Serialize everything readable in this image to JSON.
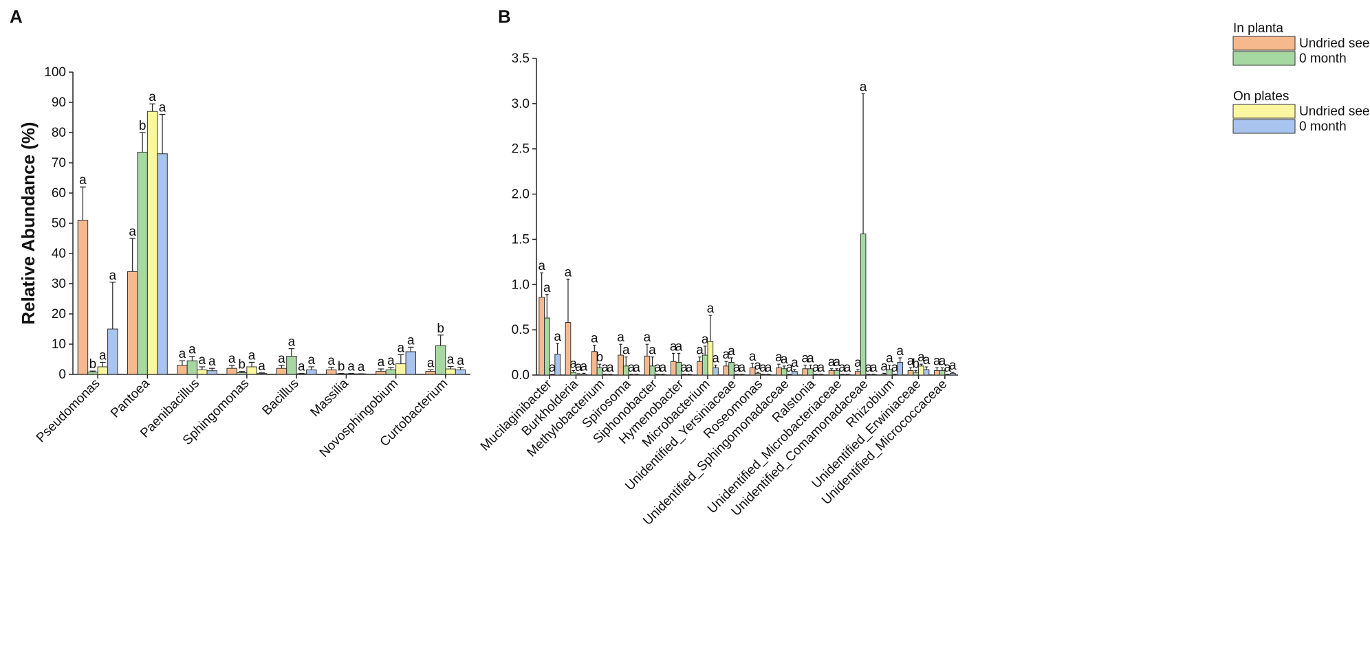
{
  "chart_data": [
    {
      "panel": "A",
      "type": "bar",
      "title": "",
      "xlabel": "",
      "ylabel": "Relative Abundance (%)",
      "ylim": [
        0,
        100
      ],
      "yticks": [
        "0",
        "10",
        "20",
        "30",
        "40",
        "50",
        "60",
        "70",
        "80",
        "90",
        "100"
      ],
      "categories": [
        "Pseudomonas",
        "Pantoea",
        "Paenibacillus",
        "Sphingomonas",
        "Bacillus",
        "Massilia",
        "Novosphingobium",
        "Curtobacterium"
      ],
      "series": [
        {
          "name": "In planta Undried seed",
          "color": "#f6b98e",
          "values": [
            51,
            34,
            3,
            2,
            2,
            1.5,
            1,
            1
          ],
          "errors": [
            11,
            11,
            1.5,
            1,
            1,
            0.8,
            0.8,
            0.5
          ],
          "letters": [
            "a",
            "a",
            "a",
            "a",
            "a",
            "a",
            "a",
            "a"
          ]
        },
        {
          "name": "In planta 0 month",
          "color": "#a6d8a2",
          "values": [
            0.8,
            73.5,
            4.5,
            0.6,
            6,
            0.2,
            1.5,
            9.5
          ],
          "errors": [
            0.3,
            6.5,
            1.5,
            0.4,
            2.5,
            0.1,
            0.8,
            3.5
          ],
          "letters": [
            "b",
            "b",
            "a",
            "b",
            "a",
            "b",
            "a",
            "b"
          ]
        },
        {
          "name": "On plates Undried seed",
          "color": "#fbf6a0",
          "values": [
            2.5,
            87,
            1.5,
            2.5,
            0.2,
            0.2,
            3.5,
            1.8
          ],
          "errors": [
            1.5,
            2.5,
            1,
            1.5,
            0.1,
            0.1,
            3,
            0.8
          ],
          "letters": [
            "a",
            "a",
            "a",
            "a",
            "a",
            "a",
            "a",
            "a"
          ]
        },
        {
          "name": "On plates 0 month",
          "color": "#a8c4ef",
          "values": [
            15,
            73,
            1.2,
            0.3,
            1.5,
            0.1,
            7.5,
            1.5
          ],
          "errors": [
            15.5,
            13,
            0.8,
            0.2,
            1,
            0.1,
            1.5,
            0.8
          ],
          "letters": [
            "a",
            "a",
            "a",
            "a",
            "a",
            "a",
            "a",
            "a"
          ]
        }
      ]
    },
    {
      "panel": "B",
      "type": "bar",
      "title": "",
      "xlabel": "",
      "ylabel": "",
      "ylim": [
        0,
        3.5
      ],
      "yticks": [
        "0.0",
        "0.5",
        "1.0",
        "1.5",
        "2.0",
        "2.5",
        "3.0",
        "3.5"
      ],
      "categories": [
        "Mucilaginibacter",
        "Burkholderia",
        "Methylobacterium",
        "Spirosoma",
        "Siphonobacter",
        "Hymenobacter",
        "Microbacterium",
        "Unidentified_Yersiniaceae",
        "Roseomonas",
        "Unidentified_Sphingomonadaceae",
        "Ralstonia",
        "Unidentified_Microbacteriaceae",
        "Unidentified_Comamonadaceae",
        "Rhizobium",
        "Unidentified_Erwiniaceae",
        "Unidentified_Micrococcaceae"
      ],
      "series": [
        {
          "name": "In planta Undried seed",
          "color": "#f6b98e",
          "values": [
            0.86,
            0.58,
            0.26,
            0.22,
            0.21,
            0.15,
            0.15,
            0.1,
            0.08,
            0.08,
            0.07,
            0.05,
            0.04,
            0.01,
            0.05,
            0.05
          ],
          "errors": [
            0.27,
            0.48,
            0.07,
            0.12,
            0.13,
            0.09,
            0.05,
            0.05,
            0.05,
            0.04,
            0.04,
            0.02,
            0.02,
            0.01,
            0.03,
            0.03
          ],
          "letters": [
            "a",
            "a",
            "a",
            "a",
            "a",
            "a",
            "a",
            "a",
            "a",
            "a",
            "a",
            "a",
            "a",
            "a",
            "a",
            "a"
          ]
        },
        {
          "name": "In planta 0 month",
          "color": "#a6d8a2",
          "values": [
            0.63,
            0.03,
            0.08,
            0.1,
            0.1,
            0.14,
            0.22,
            0.14,
            0.02,
            0.07,
            0.07,
            0.05,
            1.56,
            0.06,
            0.03,
            0.05
          ],
          "errors": [
            0.26,
            0.02,
            0.04,
            0.1,
            0.1,
            0.1,
            0.1,
            0.05,
            0.01,
            0.03,
            0.04,
            0.02,
            1.55,
            0.05,
            0.02,
            0.03
          ],
          "letters": [
            "a",
            "a",
            "b",
            "a",
            "a",
            "a",
            "a",
            "a",
            "a",
            "a",
            "a",
            "a",
            "a",
            "a",
            "b",
            "a"
          ]
        },
        {
          "name": "On plates Undried seed",
          "color": "#fbf6a0",
          "values": [
            0.005,
            0.01,
            0.005,
            0.005,
            0.005,
            0.005,
            0.37,
            0.005,
            0.005,
            0.005,
            0.005,
            0.005,
            0.005,
            0.005,
            0.1,
            0.005
          ],
          "errors": [
            0.004,
            0.005,
            0.004,
            0.004,
            0.004,
            0.004,
            0.29,
            0.004,
            0.004,
            0.004,
            0.004,
            0.004,
            0.004,
            0.004,
            0.02,
            0.004
          ],
          "letters": [
            "a",
            "a",
            "a",
            "a",
            "a",
            "a",
            "a",
            "a",
            "a",
            "a",
            "a",
            "a",
            "a",
            "a",
            "a",
            "a"
          ]
        },
        {
          "name": "On plates 0 month",
          "color": "#a8c4ef",
          "values": [
            0.23,
            0.01,
            0.005,
            0.005,
            0.005,
            0.005,
            0.08,
            0.005,
            0.005,
            0.04,
            0.005,
            0.005,
            0.005,
            0.14,
            0.06,
            0.02
          ],
          "errors": [
            0.12,
            0.01,
            0.004,
            0.004,
            0.004,
            0.004,
            0.03,
            0.004,
            0.004,
            0.02,
            0.004,
            0.004,
            0.004,
            0.05,
            0.03,
            0.01
          ],
          "letters": [
            "a",
            "a",
            "a",
            "a",
            "a",
            "a",
            "a",
            "a",
            "a",
            "a",
            "a",
            "a",
            "a",
            "a",
            "a",
            "a"
          ]
        }
      ]
    }
  ],
  "legend": {
    "groups": [
      {
        "title": "In planta",
        "items": [
          {
            "label": "Undried seed",
            "color": "#f6b98e"
          },
          {
            "label": "0 month",
            "color": "#a6d8a2"
          }
        ]
      },
      {
        "title": "On plates",
        "items": [
          {
            "label": "Undried seed",
            "color": "#fbf6a0"
          },
          {
            "label": "0 month",
            "color": "#a8c4ef"
          }
        ]
      }
    ]
  }
}
